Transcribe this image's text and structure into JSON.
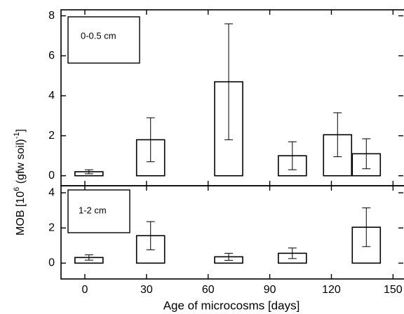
{
  "chart_data": [
    {
      "type": "bar",
      "label": "0-0.5 cm",
      "ylabel_parts": [
        "MOB [10",
        "6",
        " (gfw soil)",
        "-1",
        "]"
      ],
      "x": [
        2,
        32,
        70,
        101,
        123,
        137
      ],
      "values": [
        0.2,
        1.8,
        4.7,
        1.0,
        2.05,
        1.1
      ],
      "errors": [
        0.1,
        1.1,
        2.9,
        0.7,
        1.1,
        0.75
      ],
      "color": "#ffffff",
      "ylim": [
        -0.5,
        8.3
      ],
      "yticks": [
        0,
        2,
        4,
        6,
        8
      ]
    },
    {
      "type": "bar",
      "label": "1-2 cm",
      "xlabel": "Age of microcosms [days]",
      "x": [
        2,
        32,
        70,
        101,
        137
      ],
      "values": [
        0.32,
        1.56,
        0.36,
        0.56,
        2.04
      ],
      "errors": [
        0.15,
        0.8,
        0.2,
        0.3,
        1.1
      ],
      "color": "#ffffff",
      "xlim": [
        -11.6,
        155
      ],
      "xticks": [
        0,
        30,
        60,
        90,
        120,
        150
      ],
      "ylim": [
        -0.9,
        4.4
      ],
      "yticks": [
        0,
        2,
        4
      ]
    }
  ]
}
